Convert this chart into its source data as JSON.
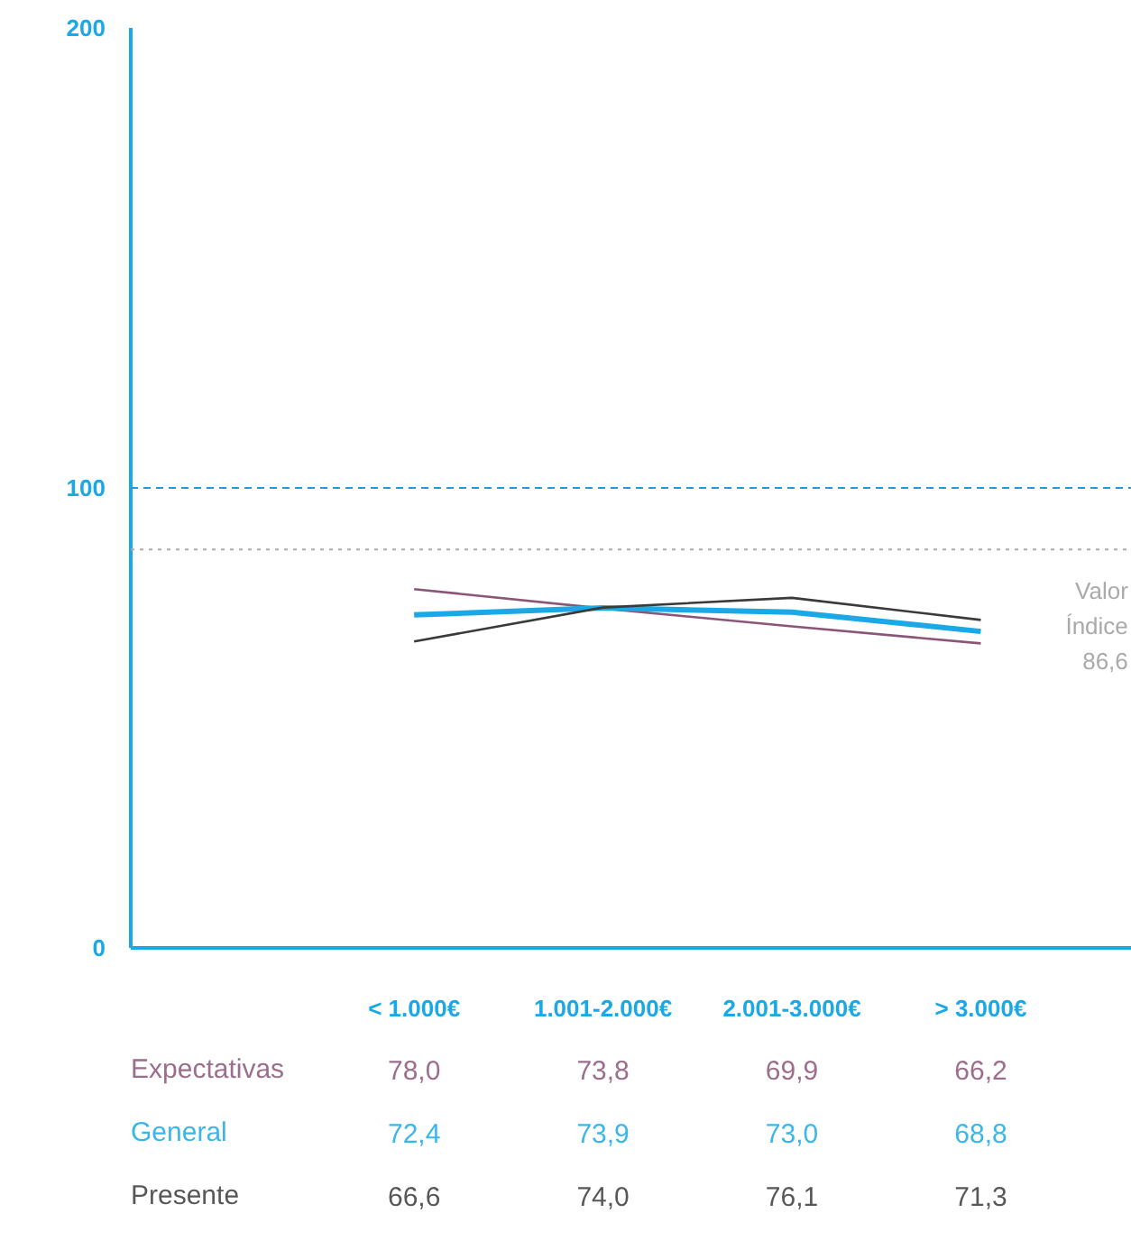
{
  "chart_data": {
    "type": "line",
    "categories": [
      "< 1.000€",
      "1.001-2.000€",
      "2.001-3.000€",
      "> 3.000€"
    ],
    "series": [
      {
        "name": "Expectativas",
        "color": "#8b5578",
        "values": [
          78.0,
          73.8,
          69.9,
          66.2
        ],
        "value_labels": [
          "78,0",
          "73,8",
          "69,9",
          "66,2"
        ]
      },
      {
        "name": "General",
        "color": "#1aa9e6",
        "values": [
          72.4,
          73.9,
          73.0,
          68.8
        ],
        "value_labels": [
          "72,4",
          "73,9",
          "73,0",
          "68,8"
        ]
      },
      {
        "name": "Presente",
        "color": "#3a3a3a",
        "values": [
          66.6,
          74.0,
          76.1,
          71.3
        ],
        "value_labels": [
          "66,6",
          "74,0",
          "76,1",
          "71,3"
        ]
      }
    ],
    "ylim": [
      0,
      200
    ],
    "yticks": [
      0,
      100,
      200
    ],
    "ref_lines": [
      {
        "axis": "y",
        "value": 100,
        "label": null,
        "color": "#1a9ee0",
        "line_style": "dashed"
      },
      {
        "axis": "y",
        "value": 86.6,
        "label": "Valor Índice 86,6",
        "color": "#aaaaaa",
        "line_style": "dotted"
      }
    ],
    "grid": false,
    "marker": "none",
    "line_style": "solid"
  }
}
